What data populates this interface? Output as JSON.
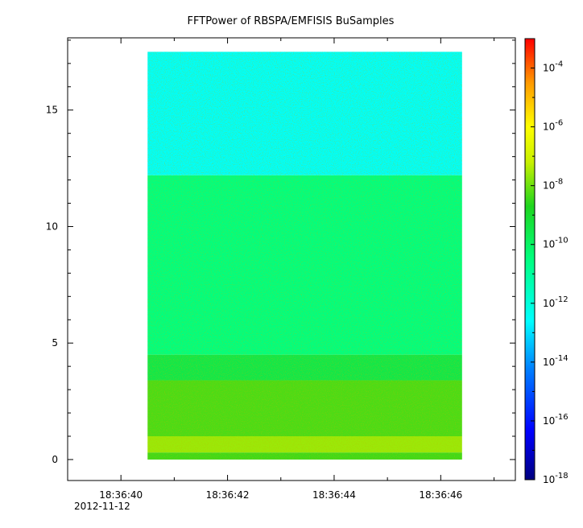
{
  "chart_data": {
    "type": "heatmap",
    "title": "FFTPower of RBSPA/EMFISIS  BuSamples",
    "xlabel": "",
    "ylabel": "",
    "x_ticks": [
      "18:36:40",
      "18:36:42",
      "18:36:44",
      "18:36:46"
    ],
    "x_tick_seconds": [
      40,
      42,
      44,
      46
    ],
    "x_date_label": "2012-11-12",
    "xlim_seconds": [
      39.0,
      47.4
    ],
    "data_x_range_seconds": [
      40.5,
      46.4
    ],
    "y_ticks": [
      0,
      5,
      10,
      15
    ],
    "ylim": [
      -0.9,
      18.1
    ],
    "data_y_range": [
      0,
      17.5
    ],
    "colorbar": {
      "scale": "log",
      "range": [
        1e-18,
        0.001
      ],
      "tick_exponents": [
        -4,
        -6,
        -8,
        -10,
        -12,
        -14,
        -16,
        -18
      ],
      "tick_base": "10"
    },
    "bands": [
      {
        "y_from": 12.2,
        "y_to": 17.5,
        "log10_power": -12.5
      },
      {
        "y_from": 4.5,
        "y_to": 12.2,
        "log10_power": -10.5
      },
      {
        "y_from": 3.4,
        "y_to": 4.5,
        "log10_power": -9.5
      },
      {
        "y_from": 1.0,
        "y_to": 3.4,
        "log10_power": -8.3
      },
      {
        "y_from": 0.3,
        "y_to": 1.0,
        "log10_power": -7.6
      },
      {
        "y_from": 0.0,
        "y_to": 0.3,
        "log10_power": -8.4
      }
    ]
  }
}
